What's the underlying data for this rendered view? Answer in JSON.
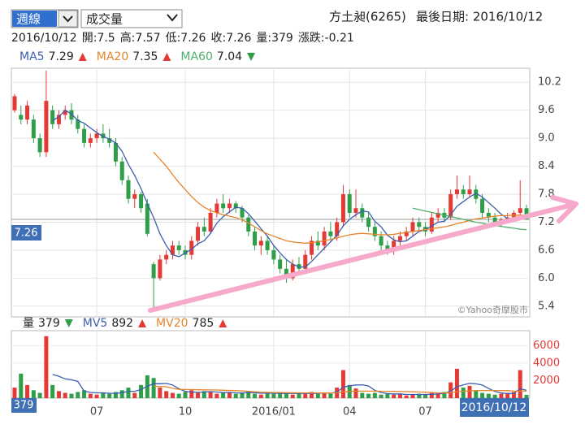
{
  "header": {
    "period": "週線",
    "indicator": "成交量",
    "stock": "方土昶(6265)",
    "last_date": "最後日期: 2016/10/12",
    "date": "2016/10/12",
    "info": [
      {
        "label": "開:",
        "value": 7.5
      },
      {
        "label": "高:",
        "value": 7.57
      },
      {
        "label": "低:",
        "value": 7.26
      },
      {
        "label": "收:",
        "value": 7.26
      },
      {
        "label": "量:",
        "value": 379
      },
      {
        "label": "漲跌:",
        "value": -0.21
      }
    ]
  },
  "watermark": "©Yahoo奇摩股市",
  "chart_data": [
    {
      "type": "candlestick",
      "up_color": "#e53935",
      "down_color": "#2e9e48",
      "grid": true,
      "categories": [
        null,
        null,
        null,
        null,
        null,
        null,
        null,
        null,
        null,
        null,
        null,
        null,
        null,
        "07",
        null,
        null,
        null,
        null,
        null,
        null,
        null,
        null,
        null,
        null,
        null,
        null,
        null,
        "10",
        null,
        null,
        null,
        null,
        null,
        null,
        null,
        null,
        null,
        null,
        null,
        null,
        null,
        "2016/01",
        null,
        null,
        null,
        null,
        null,
        null,
        null,
        null,
        null,
        null,
        null,
        "04",
        null,
        null,
        null,
        null,
        null,
        null,
        null,
        null,
        null,
        null,
        null,
        "07",
        null,
        null,
        null,
        null,
        null,
        null,
        null,
        null,
        null,
        null,
        null,
        null,
        null,
        null,
        null,
        null
      ],
      "open": [
        9.6,
        9.5,
        9.4,
        9.4,
        9.0,
        8.7,
        9.6,
        9.3,
        9.5,
        9.6,
        9.4,
        9.2,
        8.9,
        9.0,
        9.1,
        9.0,
        8.9,
        8.5,
        8.1,
        7.7,
        7.8,
        7.6,
        6.3,
        6.0,
        6.4,
        6.5,
        6.7,
        6.6,
        6.5,
        6.8,
        7.1,
        7.0,
        7.4,
        7.6,
        7.5,
        7.6,
        7.5,
        7.3,
        7.0,
        6.7,
        6.8,
        6.6,
        6.4,
        6.2,
        6.0,
        6.3,
        6.2,
        6.5,
        6.8,
        6.7,
        7.0,
        6.9,
        7.2,
        7.8,
        7.4,
        7.5,
        7.3,
        7.1,
        6.9,
        6.7,
        6.6,
        6.8,
        6.9,
        7.0,
        7.2,
        7.1,
        7.0,
        7.3,
        7.4,
        7.3,
        7.8,
        7.9,
        7.8,
        7.9,
        7.7,
        7.4,
        7.3,
        7.2,
        7.25,
        7.3,
        7.4,
        7.5
      ],
      "high": [
        9.95,
        9.7,
        9.8,
        9.5,
        9.1,
        10.45,
        9.7,
        9.6,
        9.7,
        9.75,
        9.5,
        9.3,
        9.1,
        9.2,
        9.3,
        9.2,
        9.0,
        8.6,
        8.2,
        7.9,
        7.85,
        7.7,
        6.35,
        6.5,
        6.6,
        6.8,
        6.8,
        6.7,
        6.9,
        7.2,
        7.3,
        7.5,
        7.7,
        7.8,
        7.7,
        7.65,
        7.55,
        7.35,
        7.1,
        6.9,
        6.9,
        6.7,
        6.5,
        6.4,
        6.4,
        6.45,
        6.6,
        6.9,
        7.0,
        7.1,
        7.2,
        7.3,
        8.0,
        7.9,
        7.9,
        7.6,
        7.4,
        7.2,
        7.0,
        6.8,
        6.9,
        7.0,
        7.1,
        7.3,
        7.3,
        7.2,
        7.4,
        7.5,
        7.5,
        7.9,
        8.2,
        8.0,
        8.2,
        8.0,
        7.8,
        7.5,
        7.4,
        7.3,
        7.4,
        7.45,
        8.1,
        7.57
      ],
      "low": [
        9.55,
        9.3,
        9.3,
        8.9,
        8.6,
        8.6,
        9.2,
        9.2,
        9.4,
        9.3,
        9.1,
        8.8,
        8.8,
        8.9,
        8.9,
        8.8,
        8.4,
        8.0,
        7.6,
        7.5,
        7.4,
        6.9,
        5.38,
        5.95,
        6.3,
        6.4,
        6.5,
        6.4,
        6.4,
        6.7,
        6.9,
        6.95,
        7.3,
        7.4,
        7.4,
        7.4,
        7.2,
        6.9,
        6.6,
        6.5,
        6.5,
        6.3,
        6.1,
        5.9,
        5.95,
        6.1,
        6.15,
        6.4,
        6.6,
        6.6,
        6.8,
        6.8,
        7.1,
        7.3,
        7.3,
        7.2,
        7.0,
        6.8,
        6.6,
        6.5,
        6.5,
        6.7,
        6.8,
        6.9,
        7.0,
        6.9,
        6.95,
        7.2,
        7.2,
        7.25,
        7.7,
        7.7,
        7.75,
        7.6,
        7.3,
        7.2,
        7.1,
        7.1,
        7.2,
        7.25,
        7.3,
        7.26
      ],
      "close": [
        9.9,
        9.4,
        9.7,
        9.0,
        8.7,
        9.8,
        9.3,
        9.5,
        9.6,
        9.4,
        9.2,
        8.9,
        9.0,
        9.1,
        9.0,
        8.9,
        8.5,
        8.1,
        7.7,
        7.8,
        7.5,
        6.95,
        6.0,
        6.4,
        6.5,
        6.7,
        6.6,
        6.5,
        6.8,
        7.1,
        7.0,
        7.4,
        7.6,
        7.5,
        7.6,
        7.5,
        7.3,
        7.0,
        6.7,
        6.8,
        6.6,
        6.4,
        6.2,
        6.0,
        6.3,
        6.2,
        6.5,
        6.8,
        6.7,
        7.0,
        6.9,
        7.2,
        7.8,
        7.4,
        7.5,
        7.3,
        7.1,
        6.9,
        6.7,
        6.6,
        6.8,
        6.9,
        7.0,
        7.2,
        7.1,
        7.0,
        7.3,
        7.4,
        7.3,
        7.8,
        7.9,
        7.8,
        7.9,
        7.7,
        7.4,
        7.3,
        7.2,
        7.25,
        7.3,
        7.4,
        7.5,
        7.26
      ],
      "series": [
        {
          "name": "MA5",
          "color": "#3a5fb0",
          "trend": "up",
          "values": [
            null,
            null,
            null,
            null,
            null,
            null,
            9.38,
            9.46,
            9.6,
            9.52,
            9.38,
            9.32,
            9.22,
            9.12,
            9.04,
            8.98,
            8.9,
            8.72,
            8.44,
            8.2,
            7.92,
            7.6,
            7.3,
            6.95,
            6.7,
            6.5,
            6.46,
            6.54,
            6.62,
            6.74,
            6.8,
            6.96,
            7.18,
            7.32,
            7.42,
            7.52,
            7.5,
            7.38,
            7.22,
            7.06,
            6.9,
            6.7,
            6.54,
            6.4,
            6.3,
            6.24,
            6.24,
            6.36,
            6.5,
            6.64,
            6.78,
            6.92,
            7.12,
            7.26,
            7.36,
            7.44,
            7.42,
            7.22,
            7.1,
            6.92,
            6.82,
            6.78,
            6.8,
            6.9,
            7.0,
            7.04,
            7.12,
            7.2,
            7.22,
            7.36,
            7.54,
            7.64,
            7.74,
            7.82,
            7.74,
            7.62,
            7.5,
            7.37,
            7.28,
            7.27,
            7.29,
            7.29
          ]
        },
        {
          "name": "MA20",
          "color": "#e8842c",
          "trend": "up",
          "values": [
            null,
            null,
            null,
            null,
            null,
            null,
            null,
            null,
            null,
            null,
            null,
            null,
            null,
            null,
            null,
            null,
            null,
            null,
            null,
            null,
            null,
            null,
            8.7,
            8.55,
            8.4,
            8.22,
            8.05,
            7.9,
            7.75,
            7.62,
            7.52,
            7.45,
            7.4,
            7.36,
            7.33,
            7.3,
            7.25,
            7.18,
            7.1,
            7.02,
            6.95,
            6.9,
            6.85,
            6.8,
            6.78,
            6.76,
            6.75,
            6.76,
            6.78,
            6.8,
            6.83,
            6.86,
            6.9,
            6.93,
            6.95,
            6.96,
            6.95,
            6.94,
            6.93,
            6.93,
            6.94,
            6.96,
            6.98,
            7.0,
            7.02,
            7.04,
            7.06,
            7.08,
            7.1,
            7.13,
            7.17,
            7.2,
            7.24,
            7.27,
            7.29,
            7.31,
            7.33,
            7.34,
            7.34,
            7.35,
            7.35,
            7.35
          ]
        },
        {
          "name": "MA60",
          "color": "#4caf6a",
          "trend": "down",
          "values": [
            null,
            null,
            null,
            null,
            null,
            null,
            null,
            null,
            null,
            null,
            null,
            null,
            null,
            null,
            null,
            null,
            null,
            null,
            null,
            null,
            null,
            null,
            null,
            null,
            null,
            null,
            null,
            null,
            null,
            null,
            null,
            null,
            null,
            null,
            null,
            null,
            null,
            null,
            null,
            null,
            null,
            null,
            null,
            null,
            null,
            null,
            null,
            null,
            null,
            null,
            null,
            null,
            null,
            null,
            null,
            null,
            null,
            null,
            null,
            null,
            null,
            null,
            null,
            7.5,
            7.47,
            7.44,
            7.41,
            7.38,
            7.35,
            7.32,
            7.29,
            7.26,
            7.23,
            7.2,
            7.18,
            7.15,
            7.13,
            7.11,
            7.09,
            7.07,
            7.05,
            7.04
          ]
        }
      ],
      "ylim": [
        5.17,
        10.5
      ],
      "yticks": [
        5.4,
        {
          "value": 6,
          "label": "6.0"
        },
        6.6,
        7.2,
        7.8,
        8.4,
        {
          "value": 9,
          "label": "9.0"
        },
        9.6,
        10.2
      ]
    },
    {
      "type": "bar",
      "name": "量",
      "trend": "down",
      "tick_color": "#e53935",
      "values": [
        1200,
        2800,
        1500,
        900,
        600,
        7070,
        1500,
        800,
        600,
        500,
        700,
        900,
        500,
        400,
        600,
        500,
        700,
        900,
        1200,
        600,
        1500,
        2600,
        2300,
        1200,
        800,
        600,
        500,
        700,
        900,
        600,
        800,
        700,
        500,
        600,
        700,
        500,
        600,
        800,
        500,
        400,
        600,
        500,
        700,
        500,
        400,
        600,
        500,
        700,
        500,
        600,
        500,
        1200,
        3200,
        1500,
        1100,
        600,
        500,
        600,
        400,
        500,
        400,
        500,
        300,
        400,
        500,
        400,
        600,
        500,
        700,
        1800,
        3350,
        1200,
        1400,
        900,
        600,
        500,
        400,
        500,
        600,
        700,
        3200,
        379
      ],
      "series": [
        {
          "name": "MV5",
          "color": "#3a5fb0",
          "trend": "up",
          "values": [
            null,
            null,
            null,
            null,
            null,
            null,
            2700,
            2500,
            2200,
            2100,
            1900,
            800,
            650,
            600,
            600,
            560,
            540,
            620,
            780,
            780,
            980,
            1360,
            1640,
            1640,
            1680,
            1500,
            1080,
            760,
            700,
            660,
            700,
            740,
            700,
            640,
            660,
            600,
            580,
            640,
            620,
            560,
            580,
            560,
            540,
            540,
            540,
            540,
            540,
            540,
            540,
            580,
            560,
            700,
            1240,
            1400,
            1500,
            1520,
            1380,
            900,
            640,
            520,
            480,
            480,
            420,
            420,
            420,
            420,
            440,
            480,
            540,
            800,
            1300,
            1500,
            1690,
            1630,
            1490,
            1100,
            760,
            580,
            520,
            540,
            1080,
            892
          ]
        },
        {
          "name": "MV20",
          "color": "#e8842c",
          "trend": "up",
          "values": [
            null,
            null,
            null,
            null,
            null,
            null,
            null,
            null,
            null,
            null,
            null,
            null,
            null,
            null,
            null,
            null,
            null,
            null,
            null,
            null,
            null,
            null,
            1350,
            1330,
            1300,
            1120,
            1000,
            980,
            970,
            960,
            950,
            940,
            930,
            900,
            880,
            860,
            820,
            780,
            720,
            680,
            660,
            640,
            630,
            620,
            610,
            600,
            600,
            590,
            580,
            580,
            580,
            600,
            720,
            760,
            800,
            800,
            800,
            800,
            790,
            780,
            770,
            760,
            740,
            720,
            700,
            680,
            640,
            600,
            580,
            620,
            740,
            780,
            830,
            860,
            870,
            870,
            870,
            860,
            860,
            800,
            800,
            785
          ]
        }
      ],
      "ylim": [
        0,
        7700
      ],
      "yticks": [
        2000,
        4000,
        6000
      ]
    }
  ]
}
